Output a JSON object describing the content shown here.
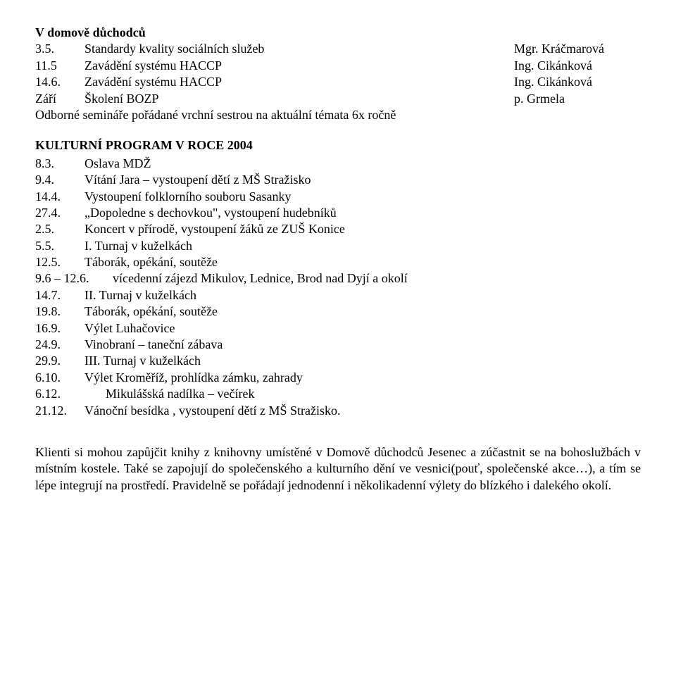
{
  "title": "V domově důchodců",
  "staff_rows": [
    {
      "num": "3.5.",
      "label": "Standardy kvality sociálních služeb",
      "right": "Mgr. Kráčmarová"
    },
    {
      "num": "11.5",
      "label": "Zavádění systému HACCP",
      "right": "Ing. Cikánková"
    },
    {
      "num": "14.6.",
      "label": "Zavádění systému HACCP",
      "right": "Ing. Cikánková"
    },
    {
      "num": "Září",
      "label": "Školení BOZP",
      "right": "p. Grmela"
    }
  ],
  "seminar_line": "Odborné semináře pořádané vrchní sestrou na aktuální témata 6x ročně",
  "program_heading": "KULTURNÍ PROGRAM V ROCE 2004",
  "program_rows": [
    {
      "num": "8.3.",
      "label": "Oslava MDŽ"
    },
    {
      "num": "9.4.",
      "label": "Vítání Jara – vystoupení dětí z MŠ Stražisko"
    },
    {
      "num": "14.4.",
      "label": "Vystoupení folklorního souboru Sasanky"
    },
    {
      "num": "27.4.",
      "label": "„Dopoledne s dechovkou\", vystoupení hudebníků"
    },
    {
      "num": "2.5.",
      "label": "Koncert v přírodě, vystoupení žáků ze ZUŠ Konice"
    },
    {
      "num": "5.5.",
      "label": "I. Turnaj v kuželkách"
    },
    {
      "num": "12.5.",
      "label": "Táborák, opékání, soutěže"
    },
    {
      "num": "9.6 – 12.6.",
      "label": "vícedenní zájezd Mikulov, Lednice, Brod nad Dyjí a okolí",
      "wide": true
    },
    {
      "num": "14.7.",
      "label": "II. Turnaj v kuželkách"
    },
    {
      "num": "19.8.",
      "label": "Táborák, opékání, soutěže"
    },
    {
      "num": "16.9.",
      "label": "Výlet Luhačovice"
    },
    {
      "num": "24.9.",
      "label": "Vinobraní – taneční zábava"
    },
    {
      "num": "29.9.",
      "label": "III. Turnaj v kuželkách"
    },
    {
      "num": "6.10.",
      "label": "Výlet Kroměříž, prohlídka zámku, zahrady"
    },
    {
      "num": "6.12.",
      "label": "Mikulášská nadílka – večírek",
      "indent": true
    },
    {
      "num": "21.12.",
      "label": "Vánoční besídka , vystoupení dětí z MŠ Stražisko."
    }
  ],
  "paragraph": "Klienti si mohou zapůjčit knihy z knihovny umístěné v Domově důchodců Jesenec a zúčastnit se na bohoslužbách v místním kostele. Také se zapojují do společenského a kulturního dění ve vesnici(pouť, společenské akce…), a tím se lépe integrují na prostředí. Pravidelně se pořádají jednodenní i několikadenní výlety do blízkého i dalekého okolí."
}
